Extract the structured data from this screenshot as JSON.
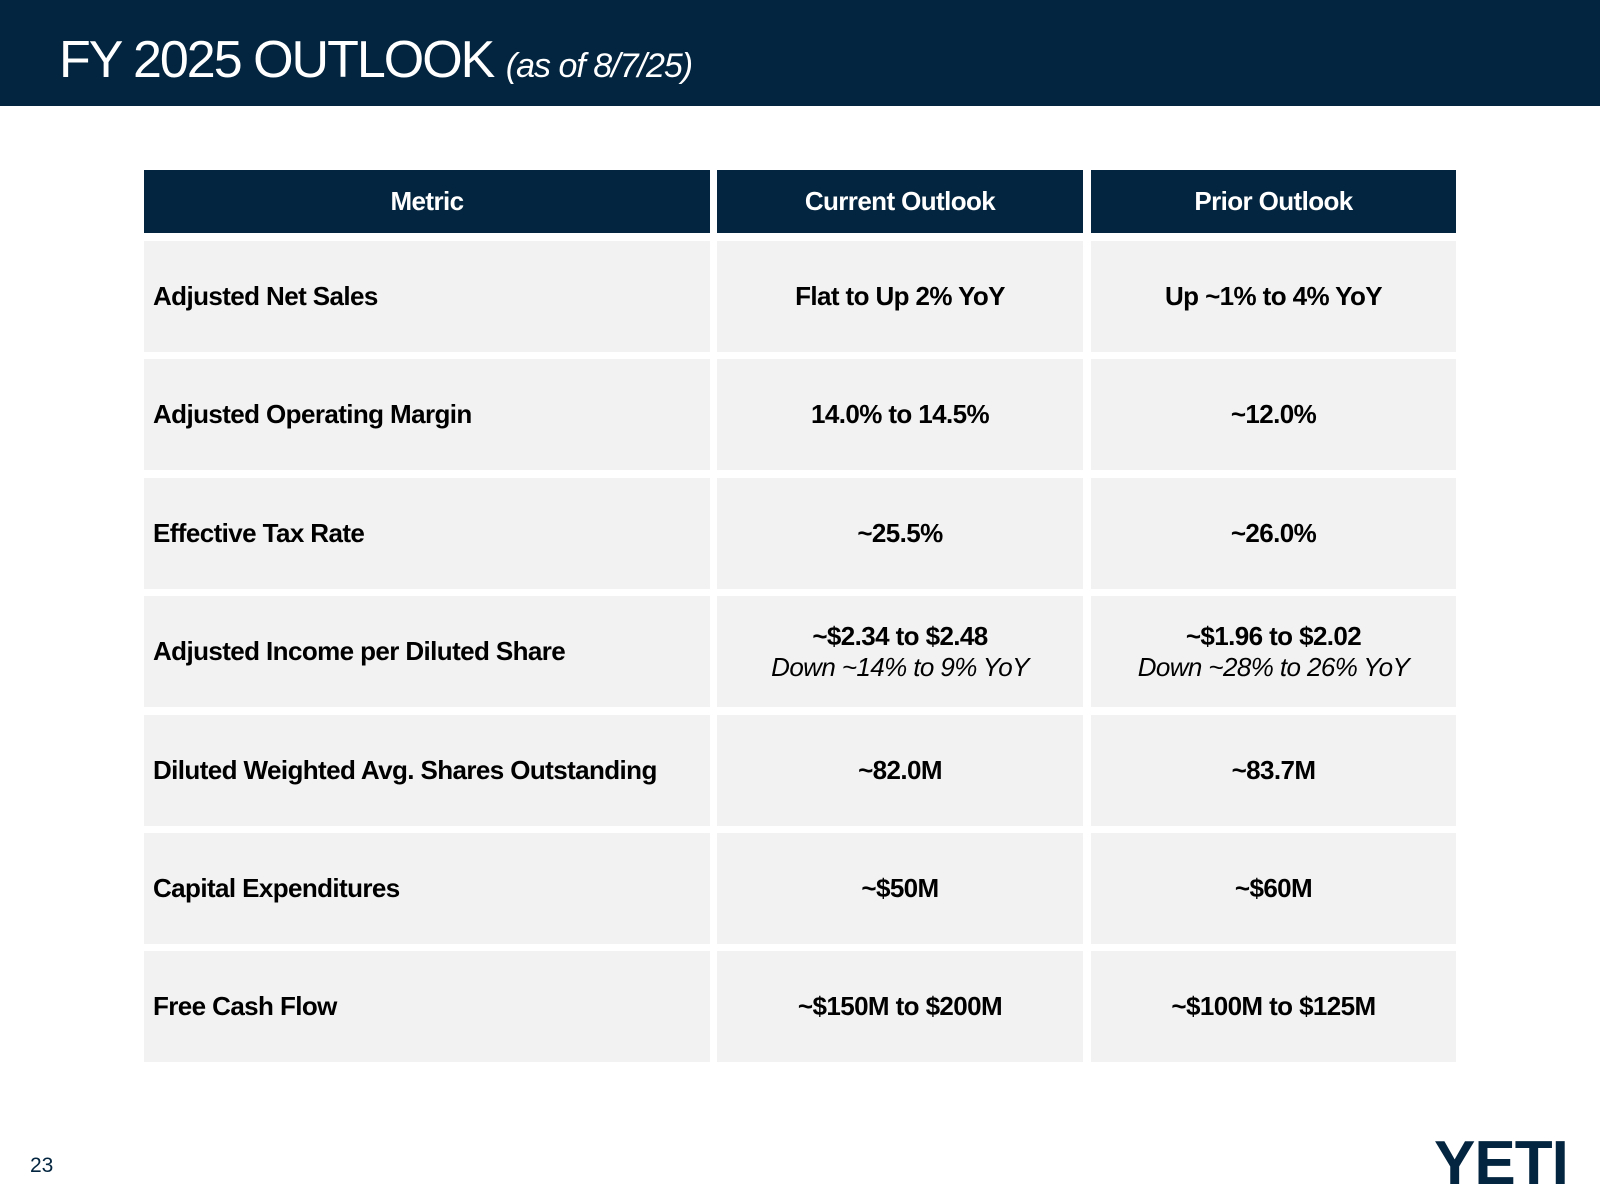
{
  "header": {
    "title": "FY 2025 OUTLOOK",
    "subtitle": "(as of 8/7/25)"
  },
  "table": {
    "columns": [
      "Metric",
      "Current Outlook",
      "Prior Outlook"
    ],
    "rows": [
      {
        "metric": "Adjusted Net Sales",
        "current": "Flat to Up 2% YoY",
        "prior": "Up ~1% to 4% YoY"
      },
      {
        "metric": "Adjusted Operating Margin",
        "current": "14.0% to 14.5%",
        "prior": "~12.0%"
      },
      {
        "metric": "Effective Tax Rate",
        "current": "~25.5%",
        "prior": "~26.0%"
      },
      {
        "metric": "Adjusted Income per Diluted Share",
        "current": "~$2.34 to $2.48",
        "current_note": "Down ~14% to 9% YoY",
        "prior": "~$1.96 to $2.02",
        "prior_note": "Down ~28% to 26% YoY"
      },
      {
        "metric": "Diluted Weighted Avg. Shares Outstanding",
        "current": "~82.0M",
        "prior": "~83.7M"
      },
      {
        "metric": "Capital Expenditures",
        "current": "~$50M",
        "prior": "~$60M"
      },
      {
        "metric": "Free Cash Flow",
        "current": "~$150M to $200M",
        "prior": "~$100M to $125M"
      }
    ]
  },
  "footer": {
    "page_number": "23",
    "logo": "YETI"
  }
}
